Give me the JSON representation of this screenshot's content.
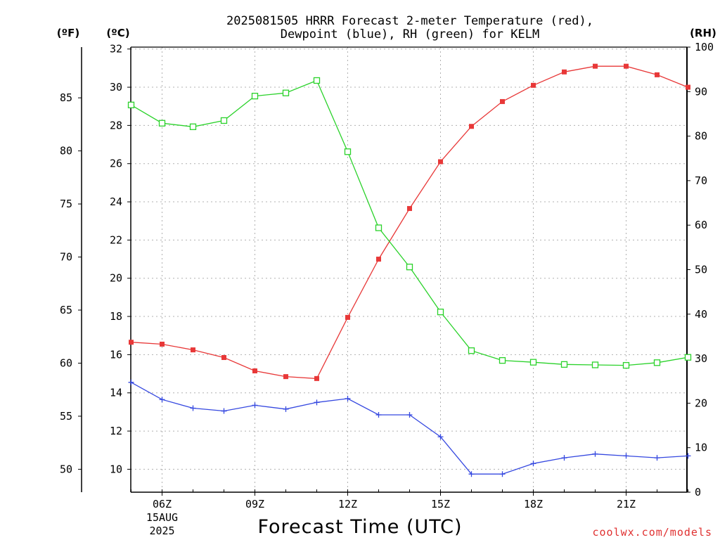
{
  "title_line1": "2025081505 HRRR Forecast 2-meter Temperature (red),",
  "title_line2": "Dewpoint (blue), RH (green) for KELM",
  "unit_f": "(ºF)",
  "unit_c": "(ºC)",
  "unit_rh": "(RH)",
  "xlabel": "Forecast Time (UTC)",
  "credit": "coolwx.com/models",
  "colors": {
    "temperature": "#e83838",
    "dewpoint": "#3548e0",
    "rh": "#2ad22a"
  },
  "chart_data": {
    "type": "line",
    "title": "2025081505 HRRR Forecast 2-meter Temperature (red), Dewpoint (blue), RH (green) for KELM",
    "xlabel": "Forecast Time (UTC)",
    "x": [
      "05Z",
      "06Z",
      "07Z",
      "08Z",
      "09Z",
      "10Z",
      "11Z",
      "12Z",
      "13Z",
      "14Z",
      "15Z",
      "16Z",
      "17Z",
      "18Z",
      "19Z",
      "20Z",
      "21Z",
      "22Z",
      "23Z"
    ],
    "x_ticks": [
      {
        "label": "06Z",
        "sub": [
          "15AUG",
          "2025"
        ]
      },
      {
        "label": "09Z",
        "sub": []
      },
      {
        "label": "12Z",
        "sub": []
      },
      {
        "label": "15Z",
        "sub": []
      },
      {
        "label": "18Z",
        "sub": []
      },
      {
        "label": "21Z",
        "sub": []
      }
    ],
    "y_left_c": {
      "label": "(ºC)",
      "ylim": [
        8.8,
        32.1
      ],
      "ticks": [
        10,
        12,
        14,
        16,
        18,
        20,
        22,
        24,
        26,
        28,
        30,
        32
      ]
    },
    "y_left_f": {
      "label": "(ºF)",
      "ticks": [
        50,
        55,
        60,
        65,
        70,
        75,
        80,
        85
      ]
    },
    "y_right_rh": {
      "label": "(RH)",
      "ylim": [
        0,
        100
      ],
      "ticks": [
        0,
        10,
        20,
        30,
        40,
        50,
        60,
        70,
        80,
        90,
        100
      ]
    },
    "grid": true,
    "series": [
      {
        "name": "Temperature",
        "axis": "c",
        "unit": "ºC",
        "marker": "square-filled",
        "values": [
          16.65,
          16.55,
          16.25,
          15.85,
          15.15,
          14.85,
          14.75,
          17.95,
          21.0,
          23.65,
          26.1,
          27.95,
          29.25,
          30.1,
          30.8,
          31.1,
          31.1,
          30.65,
          30.0
        ]
      },
      {
        "name": "Dewpoint",
        "axis": "c",
        "unit": "ºC",
        "marker": "plus",
        "values": [
          14.55,
          13.65,
          13.2,
          13.05,
          13.35,
          13.15,
          13.5,
          13.7,
          12.85,
          12.85,
          11.7,
          9.75,
          9.75,
          10.3,
          10.6,
          10.8,
          10.7,
          10.6,
          10.7
        ]
      },
      {
        "name": "RH",
        "axis": "rh",
        "unit": "%",
        "marker": "square-open",
        "values": [
          87.0,
          82.9,
          82.1,
          83.5,
          89.0,
          89.7,
          92.5,
          76.5,
          59.4,
          50.6,
          40.5,
          31.8,
          29.6,
          29.2,
          28.7,
          28.6,
          28.5,
          29.1,
          30.3
        ]
      }
    ]
  }
}
